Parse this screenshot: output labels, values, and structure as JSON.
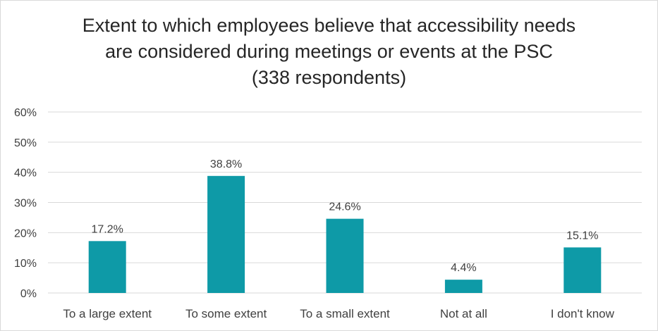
{
  "chart_data": {
    "type": "bar",
    "title_lines": [
      "Extent to which employees believe that accessibility needs",
      "are considered during meetings or events at the PSC",
      "(338 respondents)"
    ],
    "categories": [
      "To a large extent",
      "To some extent",
      "To a small extent",
      "Not at all",
      "I don't know"
    ],
    "values": [
      17.2,
      38.8,
      24.6,
      4.4,
      15.1
    ],
    "data_labels": [
      "17.2%",
      "38.8%",
      "24.6%",
      "4.4%",
      "15.1%"
    ],
    "y_ticks": [
      0,
      10,
      20,
      30,
      40,
      50,
      60
    ],
    "y_tick_labels": [
      "0%",
      "10%",
      "20%",
      "30%",
      "40%",
      "50%",
      "60%"
    ],
    "ylim": [
      0,
      60
    ],
    "xlabel": "",
    "ylabel": "",
    "grid": true,
    "legend": "none",
    "bar_color": "#0e9aa7",
    "grid_color": "#d9d9d9",
    "text_color": "#404040"
  }
}
